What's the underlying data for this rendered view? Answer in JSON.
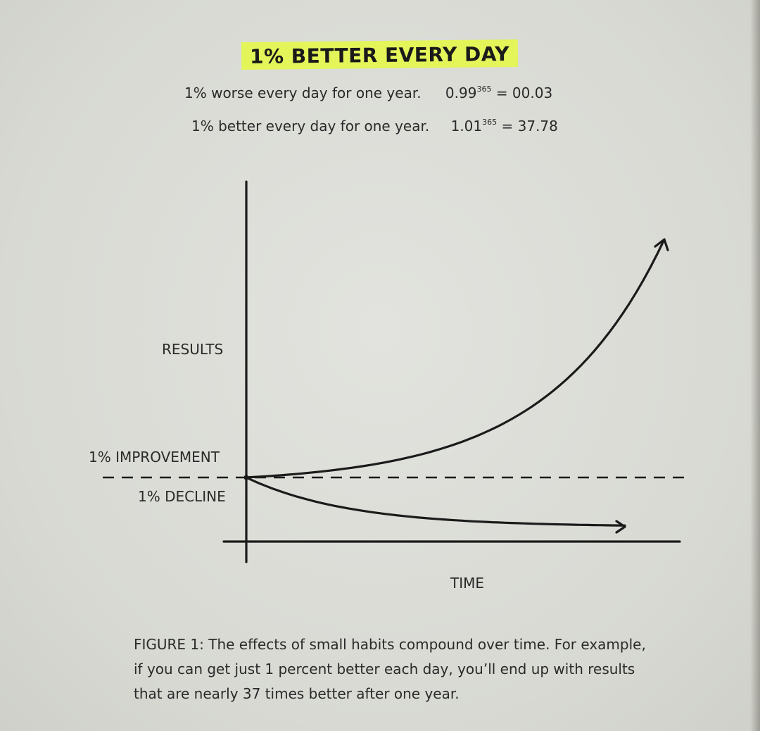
{
  "heading": "1% BETTER EVERY DAY",
  "equations": [
    {
      "text": "1% worse every day for one year.",
      "base": "0.99",
      "exponent": "365",
      "result": "= 00.03"
    },
    {
      "text": "1% better every day for one year.",
      "base": "1.01",
      "exponent": "365",
      "result": "= 37.78"
    }
  ],
  "caption": "FIGURE 1: The effects of small habits compound over time. For example, if you can get just 1 percent better each day, you’ll end up with results that are nearly 37 times better after one year.",
  "chart_data": {
    "type": "line",
    "ylabel": "RESULTS",
    "xlabel": "TIME",
    "x": [
      0,
      36,
      73,
      109,
      146,
      182,
      219,
      255,
      292,
      328,
      365
    ],
    "series": [
      {
        "values": [
          1.0,
          1.43,
          2.07,
          2.96,
          4.28,
          6.12,
          8.84,
          12.65,
          18.27,
          26.14,
          37.78
        ]
      },
      {
        "values": [
          1.0,
          0.7,
          0.48,
          0.33,
          0.23,
          0.16,
          0.11,
          0.08,
          0.05,
          0.04,
          0.03
        ]
      }
    ],
    "reference_line": {
      "label_above": "1% IMPROVEMENT",
      "label_below": "1% DECLINE",
      "value": 1.0,
      "style": "dashed"
    },
    "xlim": [
      0,
      365
    ],
    "grid": false,
    "colors": {
      "ink": "#1b1b1b",
      "highlight": "#e4f55a"
    }
  }
}
